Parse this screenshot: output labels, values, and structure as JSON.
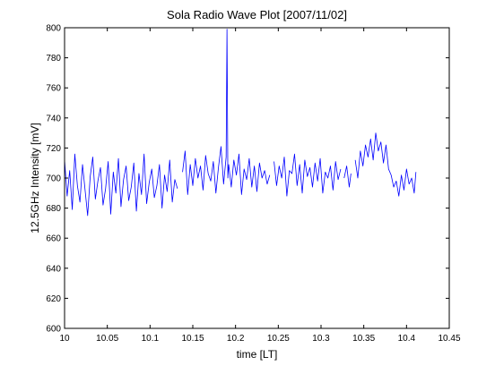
{
  "chart_data": {
    "type": "line",
    "title": "Sola Radio Wave Plot [2007/11/02]",
    "xlabel": "time [LT]",
    "ylabel": "12.5GHz Intensity [mV]",
    "xlim": [
      10,
      10.45
    ],
    "ylim": [
      600,
      800
    ],
    "grid": false,
    "x_ticks": [
      {
        "value": 10,
        "label": "10"
      },
      {
        "value": 10.05,
        "label": "10.05"
      },
      {
        "value": 10.1,
        "label": "10.1"
      },
      {
        "value": 10.15,
        "label": "10.15"
      },
      {
        "value": 10.2,
        "label": "10.2"
      },
      {
        "value": 10.25,
        "label": "10.25"
      },
      {
        "value": 10.3,
        "label": "10.3"
      },
      {
        "value": 10.35,
        "label": "10.35"
      },
      {
        "value": 10.4,
        "label": "10.4"
      },
      {
        "value": 10.45,
        "label": "10.45"
      }
    ],
    "y_ticks": [
      {
        "value": 600,
        "label": "600"
      },
      {
        "value": 620,
        "label": "620"
      },
      {
        "value": 640,
        "label": "640"
      },
      {
        "value": 660,
        "label": "660"
      },
      {
        "value": 680,
        "label": "680"
      },
      {
        "value": 700,
        "label": "700"
      },
      {
        "value": 720,
        "label": "720"
      },
      {
        "value": 740,
        "label": "740"
      },
      {
        "value": 760,
        "label": "760"
      },
      {
        "value": 780,
        "label": "780"
      },
      {
        "value": 800,
        "label": "800"
      }
    ],
    "series": [
      {
        "color": "#0000ff",
        "x": [
          10.0,
          10.003,
          10.006,
          10.009,
          10.012,
          10.015,
          10.018,
          10.021,
          10.024,
          10.027,
          10.03,
          10.033,
          10.036,
          10.039,
          10.042,
          10.045,
          10.048,
          10.051,
          10.054,
          10.057,
          10.06,
          10.063,
          10.066,
          10.069,
          10.072,
          10.075,
          10.078,
          10.081,
          10.084,
          10.087,
          10.09,
          10.093,
          10.096,
          10.099,
          10.102,
          10.105,
          10.108,
          10.111,
          10.114,
          10.117,
          10.12,
          10.123,
          10.126,
          10.129,
          10.132,
          null,
          10.138,
          10.141,
          10.144,
          10.147,
          10.15,
          10.153,
          10.156,
          10.159,
          10.162,
          10.165,
          10.168,
          10.171,
          10.174,
          10.177,
          10.18,
          10.183,
          10.186,
          10.189,
          10.19,
          10.191,
          10.192,
          10.195,
          10.198,
          10.201,
          10.204,
          10.207,
          10.21,
          10.213,
          10.216,
          10.219,
          10.222,
          10.225,
          10.228,
          10.231,
          10.234,
          10.237,
          10.24,
          null,
          10.245,
          10.248,
          10.251,
          10.254,
          10.257,
          10.26,
          10.263,
          10.266,
          10.269,
          10.272,
          10.275,
          10.278,
          10.281,
          10.284,
          10.287,
          10.29,
          10.293,
          10.296,
          10.299,
          10.302,
          10.305,
          10.308,
          10.311,
          10.314,
          10.317,
          10.32,
          10.323,
          null,
          10.327,
          10.33,
          10.333,
          10.335,
          null,
          10.34,
          10.343,
          10.346,
          10.349,
          10.352,
          10.355,
          10.358,
          10.361,
          10.364,
          10.367,
          10.37,
          10.373,
          10.376,
          10.379,
          10.382,
          10.385,
          10.388,
          10.391,
          10.394,
          10.397,
          10.4,
          10.403,
          10.406,
          10.409,
          10.411
        ],
        "y": [
          712,
          688,
          705,
          679,
          716,
          695,
          684,
          709,
          692,
          675,
          701,
          714,
          686,
          698,
          707,
          682,
          693,
          711,
          676,
          704,
          690,
          713,
          681,
          699,
          708,
          685,
          694,
          710,
          678,
          703,
          689,
          716,
          683,
          697,
          706,
          687,
          695,
          709,
          680,
          702,
          691,
          712,
          684,
          699,
          693,
          null,
          704,
          718,
          689,
          709,
          695,
          713,
          700,
          708,
          692,
          715,
          703,
          698,
          711,
          690,
          707,
          721,
          696,
          714,
          799,
          700,
          709,
          694,
          712,
          702,
          716,
          689,
          706,
          699,
          713,
          694,
          708,
          691,
          710,
          700,
          705,
          696,
          702,
          null,
          711,
          695,
          708,
          700,
          714,
          688,
          705,
          703,
          716,
          695,
          709,
          690,
          712,
          701,
          707,
          694,
          710,
          698,
          713,
          690,
          704,
          700,
          708,
          692,
          711,
          699,
          706,
          null,
          700,
          708,
          694,
          703,
          null,
          712,
          700,
          718,
          708,
          722,
          714,
          726,
          712,
          730,
          718,
          724,
          710,
          722,
          706,
          702,
          694,
          698,
          688,
          702,
          692,
          706,
          696,
          700,
          690,
          704
        ]
      }
    ]
  }
}
